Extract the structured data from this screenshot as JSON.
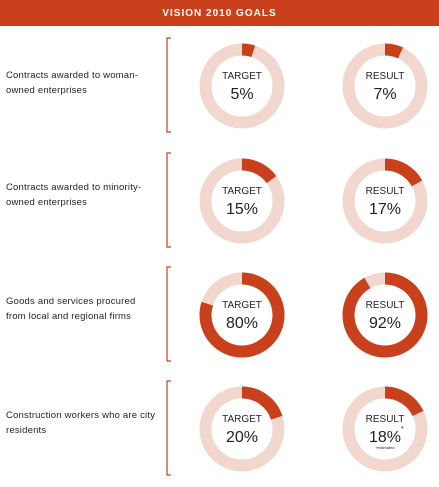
{
  "title": "VISION 2010 GOALS",
  "colors": {
    "accent": "#c8401c",
    "track": "#f2d7cf",
    "text": "#231f20"
  },
  "chart_data": {
    "type": "donut",
    "title": "VISION 2010 GOALS",
    "columns": [
      "TARGET",
      "RESULT"
    ],
    "rows": [
      {
        "label": "Contracts awarded to woman-owned enterprises",
        "target": {
          "value": 5,
          "text": "5%"
        },
        "result": {
          "value": 7,
          "text": "7%"
        }
      },
      {
        "label": "Contracts awarded to minority-owned enterprises",
        "target": {
          "value": 15,
          "text": "15%"
        },
        "result": {
          "value": 17,
          "text": "17%"
        }
      },
      {
        "label": "Goods and services procured from local and regional firms",
        "target": {
          "value": 80,
          "text": "80%"
        },
        "result": {
          "value": 92,
          "text": "92%"
        }
      },
      {
        "label": "Construction workers who are city residents",
        "target": {
          "value": 20,
          "text": "20%"
        },
        "result": {
          "value": 18,
          "text": "18%",
          "marker": "*",
          "footnote": "*estimated"
        }
      }
    ]
  }
}
